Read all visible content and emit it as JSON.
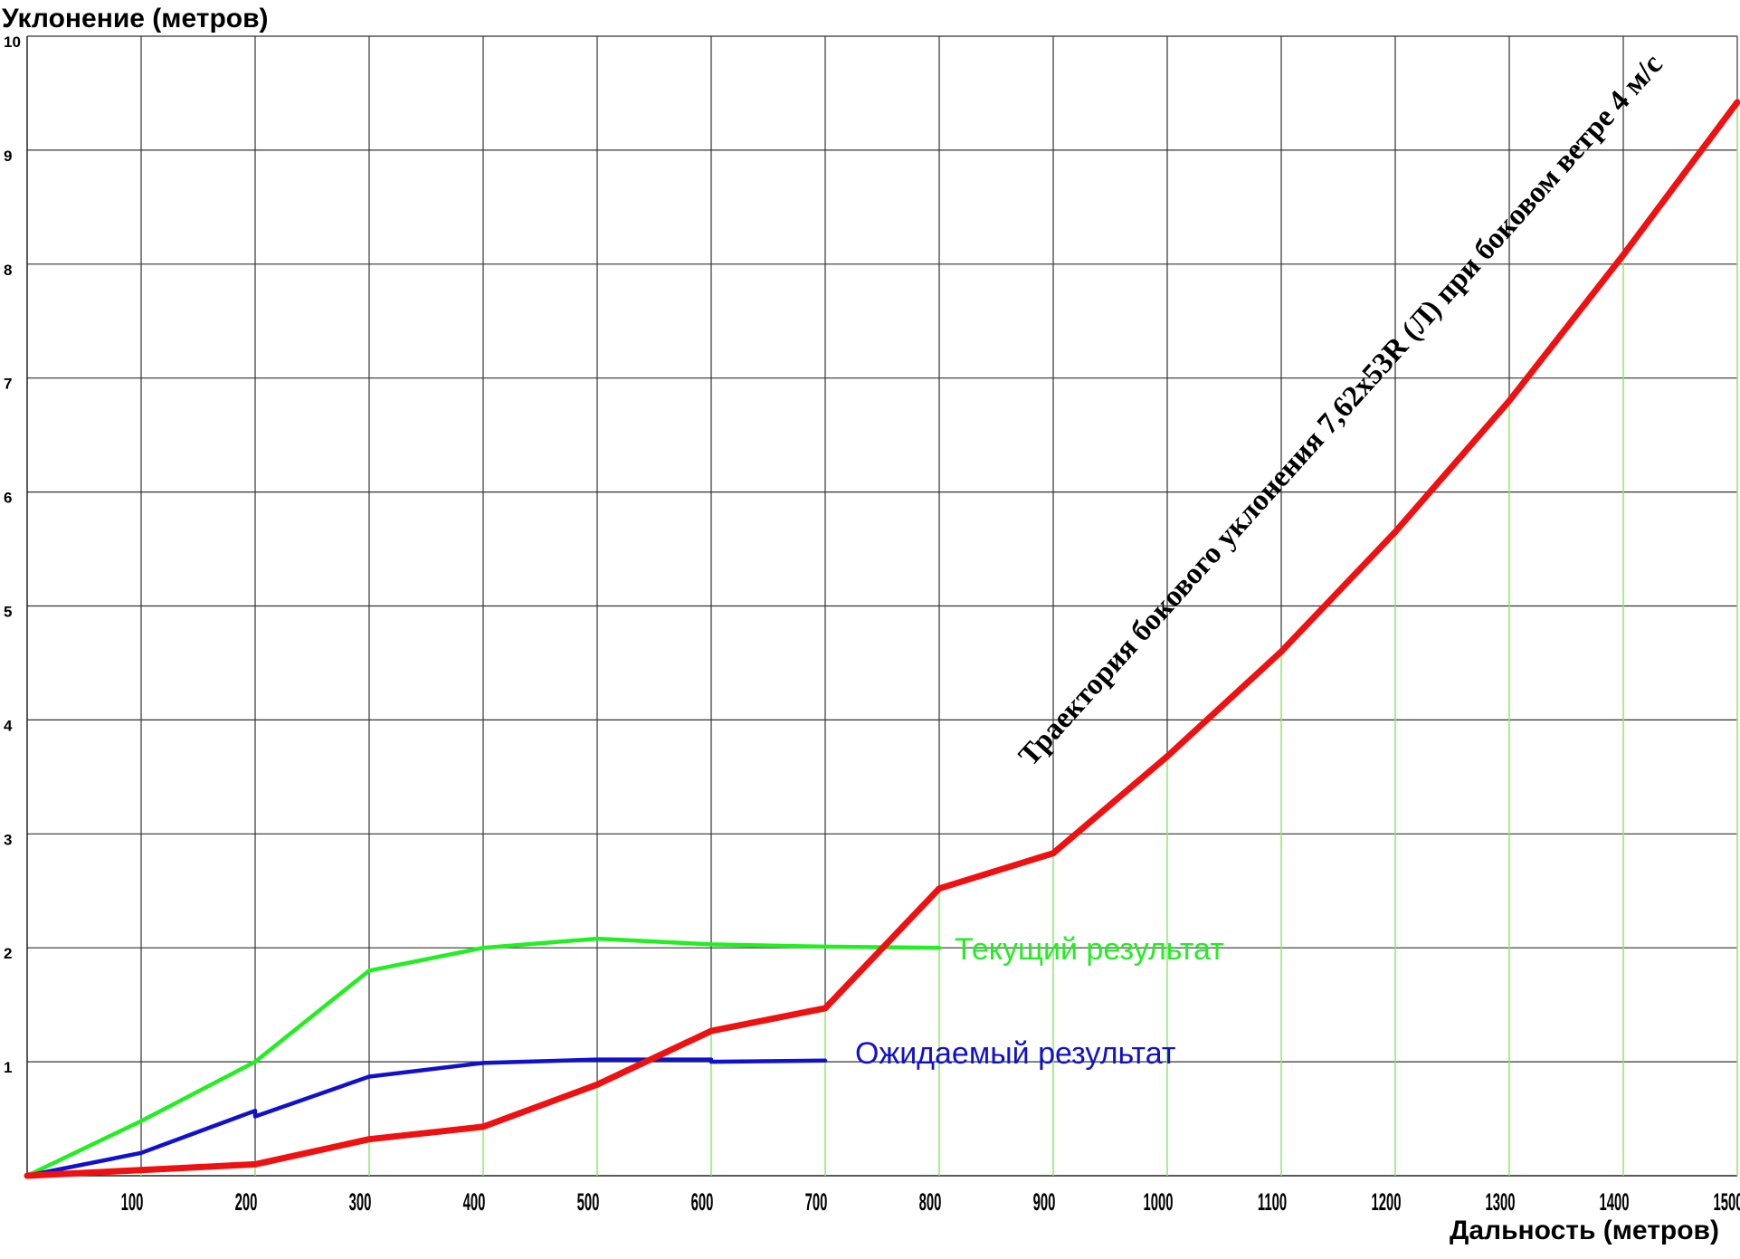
{
  "chart_data": {
    "type": "line",
    "title": "",
    "xlabel": "Дальность (метров)",
    "ylabel": "Уклонение (метров)",
    "xlim": [
      0,
      1500
    ],
    "ylim": [
      0,
      10
    ],
    "x_ticks": [
      "100",
      "200",
      "300",
      "400",
      "500",
      "600",
      "700",
      "800",
      "900",
      "1000",
      "1100",
      "1200",
      "1300",
      "1400",
      "1500"
    ],
    "y_ticks": [
      "1",
      "2",
      "3",
      "4",
      "5",
      "6",
      "7",
      "8",
      "9",
      "10"
    ],
    "grid": true,
    "annotation": "Траектория бокового уклонения 7,62х53R (Л) при боковом ветре 4 м/с",
    "series": [
      {
        "name": "",
        "color": "#ee1111",
        "x": [
          0,
          100,
          200,
          300,
          400,
          500,
          600,
          700,
          800,
          900,
          1000,
          1100,
          1200,
          1300,
          1400,
          1500
        ],
        "y": [
          0,
          0.05,
          0.1,
          0.32,
          0.43,
          0.8,
          1.27,
          1.47,
          2.52,
          2.83,
          3.68,
          4.6,
          5.65,
          6.8,
          8.08,
          9.42
        ]
      },
      {
        "name": "Текущий результат",
        "color": "#22ee22",
        "x": [
          0,
          100,
          200,
          300,
          400,
          500,
          600,
          700,
          800
        ],
        "y": [
          0,
          0.48,
          1.0,
          1.8,
          2.0,
          2.08,
          2.03,
          2.01,
          2.0
        ]
      },
      {
        "name": "Ожидаемый результат",
        "color": "#1111cc",
        "x": [
          0,
          100,
          200,
          200,
          300,
          400,
          500,
          600,
          600,
          700
        ],
        "y": [
          0,
          0.2,
          0.57,
          0.52,
          0.87,
          0.99,
          1.02,
          1.02,
          1.0,
          1.01
        ]
      }
    ]
  }
}
